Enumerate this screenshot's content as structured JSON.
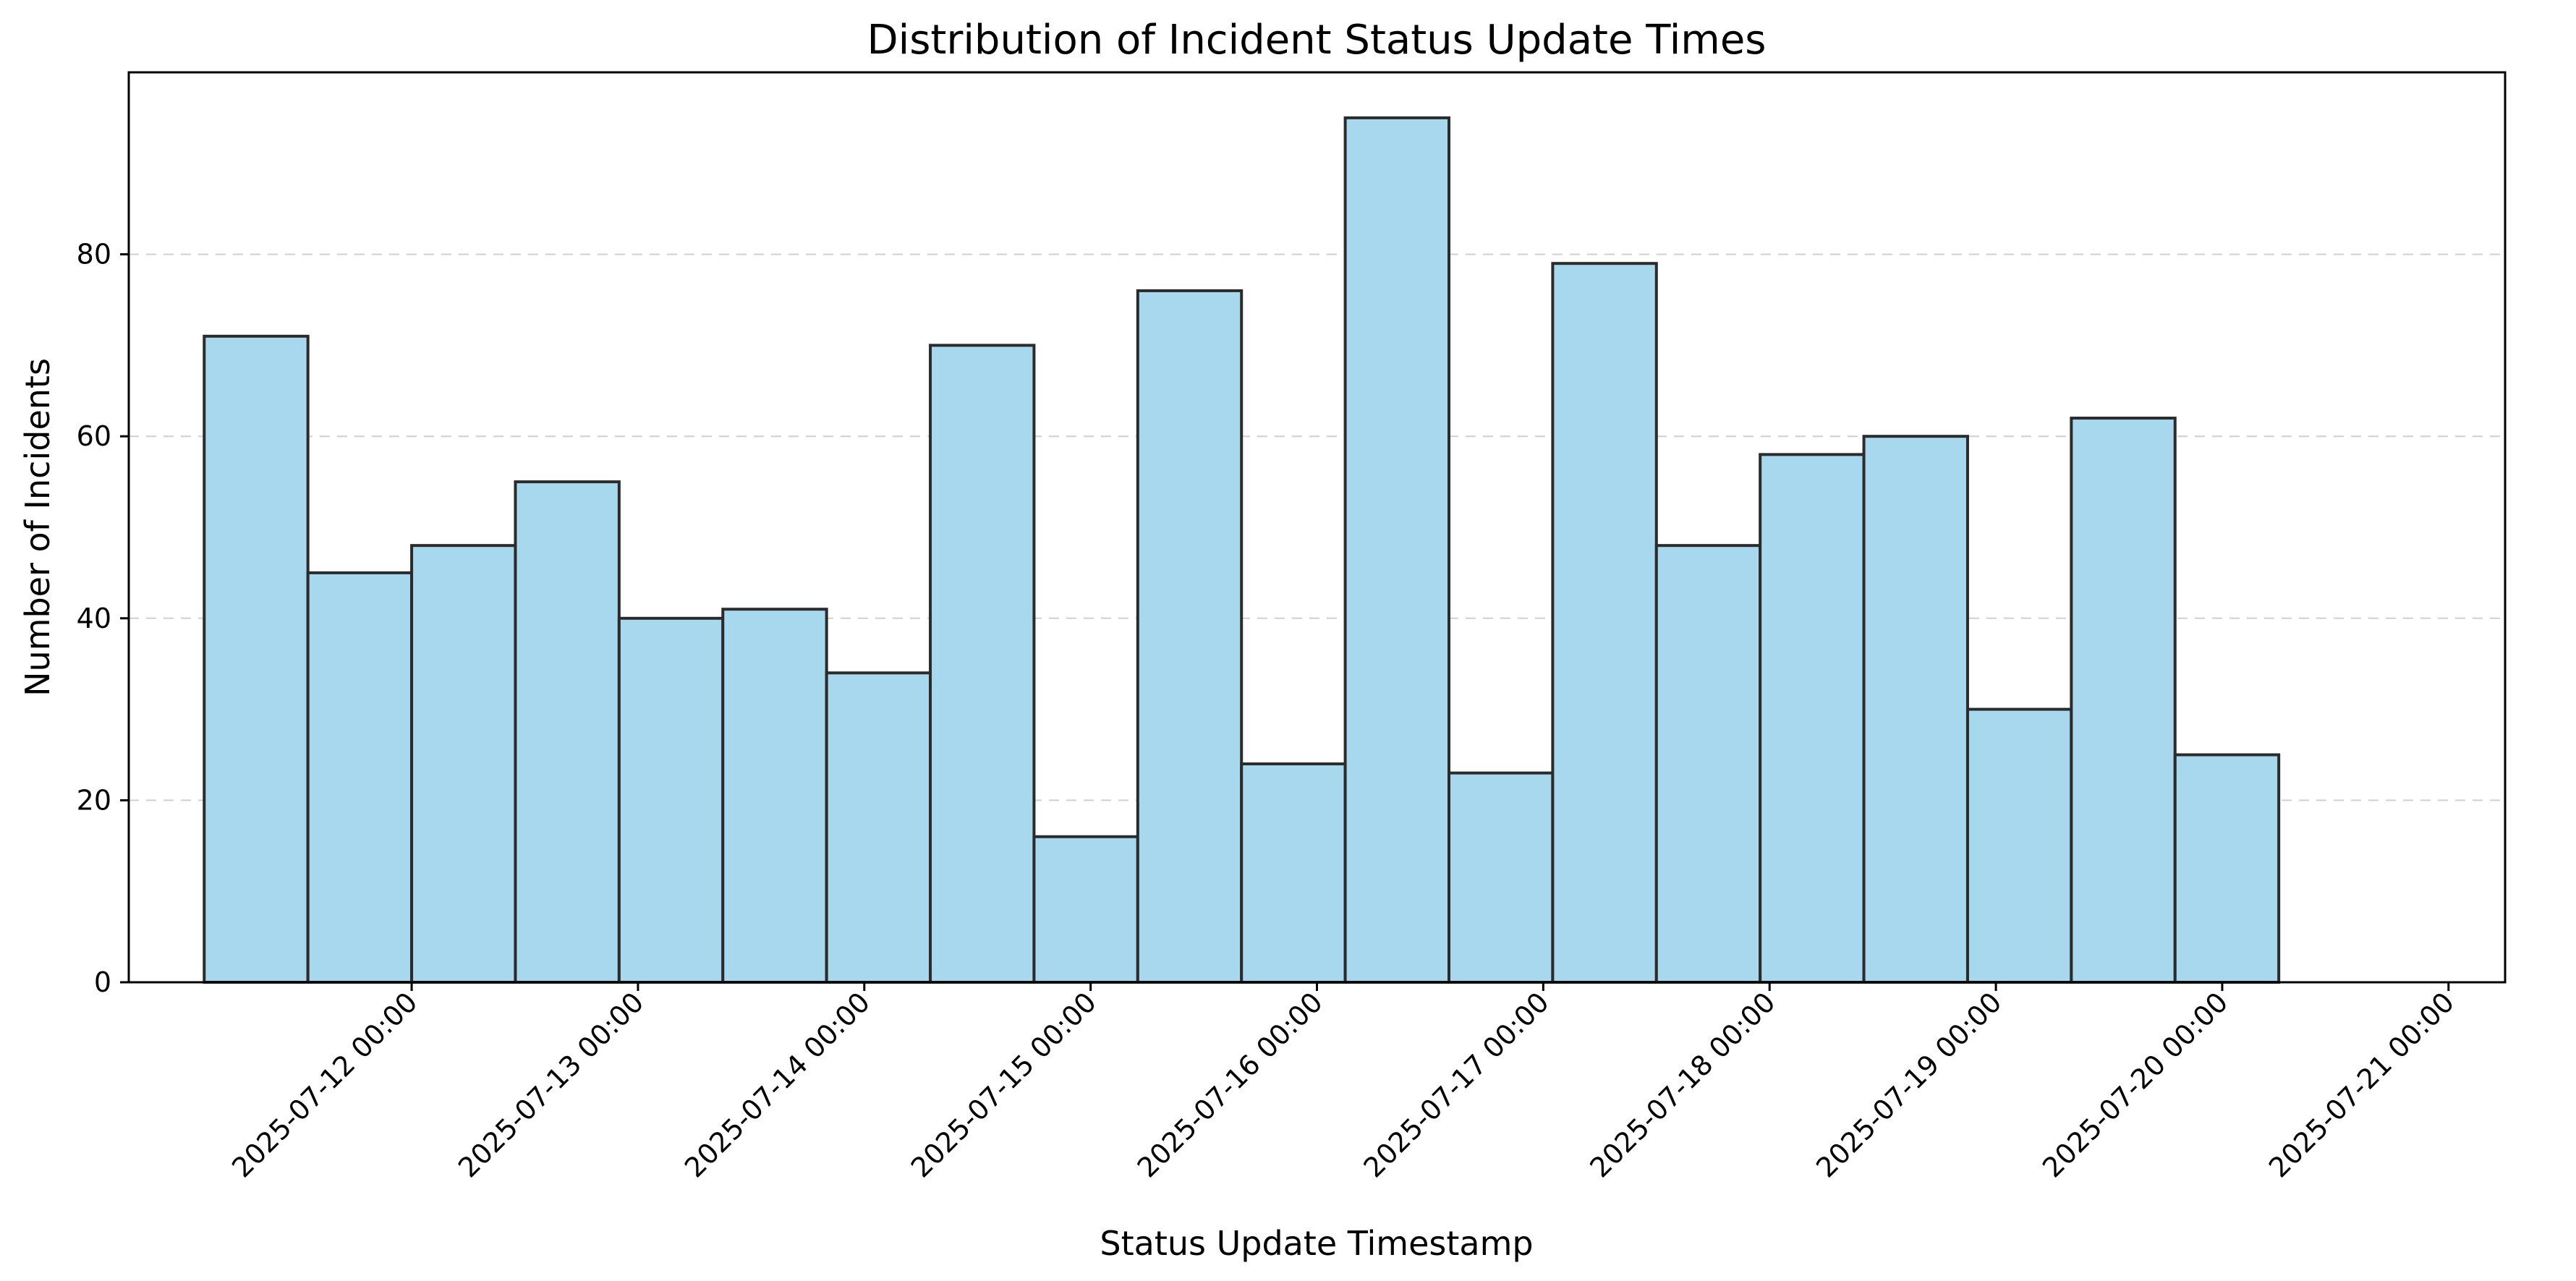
{
  "chart_data": {
    "type": "bar",
    "title": "Distribution of Incident Status Update Times",
    "xlabel": "Status Update Timestamp",
    "ylabel": "Number of Incidents",
    "bar_color": "#a8d8ed",
    "edge_color": "#2b2b2b",
    "grid": true,
    "grid_axis": "y",
    "bin_width_hours": 11,
    "bins": [
      {
        "start": "2025-07-11 02:00",
        "end": "2025-07-11 13:00",
        "count": 71
      },
      {
        "start": "2025-07-11 13:00",
        "end": "2025-07-12 00:00",
        "count": 45
      },
      {
        "start": "2025-07-12 00:00",
        "end": "2025-07-12 11:00",
        "count": 48
      },
      {
        "start": "2025-07-12 11:00",
        "end": "2025-07-12 22:00",
        "count": 55
      },
      {
        "start": "2025-07-12 22:00",
        "end": "2025-07-13 09:00",
        "count": 40
      },
      {
        "start": "2025-07-13 09:00",
        "end": "2025-07-13 20:00",
        "count": 41
      },
      {
        "start": "2025-07-13 20:00",
        "end": "2025-07-14 07:00",
        "count": 34
      },
      {
        "start": "2025-07-14 07:00",
        "end": "2025-07-14 18:00",
        "count": 70
      },
      {
        "start": "2025-07-14 18:00",
        "end": "2025-07-15 05:00",
        "count": 16
      },
      {
        "start": "2025-07-15 05:00",
        "end": "2025-07-15 16:00",
        "count": 76
      },
      {
        "start": "2025-07-15 16:00",
        "end": "2025-07-16 03:00",
        "count": 24
      },
      {
        "start": "2025-07-16 03:00",
        "end": "2025-07-16 14:00",
        "count": 95
      },
      {
        "start": "2025-07-16 14:00",
        "end": "2025-07-17 01:00",
        "count": 23
      },
      {
        "start": "2025-07-17 01:00",
        "end": "2025-07-17 12:00",
        "count": 79
      },
      {
        "start": "2025-07-17 12:00",
        "end": "2025-07-17 23:00",
        "count": 48
      },
      {
        "start": "2025-07-17 23:00",
        "end": "2025-07-18 10:00",
        "count": 58
      },
      {
        "start": "2025-07-18 10:00",
        "end": "2025-07-18 21:00",
        "count": 60
      },
      {
        "start": "2025-07-18 21:00",
        "end": "2025-07-19 08:00",
        "count": 30
      },
      {
        "start": "2025-07-19 08:00",
        "end": "2025-07-19 19:00",
        "count": 62
      },
      {
        "start": "2025-07-19 19:00",
        "end": "2025-07-20 06:00",
        "count": 25
      }
    ],
    "xlim": [
      "2025-07-10 18:00",
      "2025-07-21 06:00"
    ],
    "ylim": [
      0,
      100
    ],
    "x_ticks": [
      "2025-07-12 00:00",
      "2025-07-13 00:00",
      "2025-07-14 00:00",
      "2025-07-15 00:00",
      "2025-07-16 00:00",
      "2025-07-17 00:00",
      "2025-07-18 00:00",
      "2025-07-19 00:00",
      "2025-07-20 00:00",
      "2025-07-21 00:00"
    ],
    "y_ticks": [
      0,
      20,
      40,
      60,
      80
    ]
  }
}
